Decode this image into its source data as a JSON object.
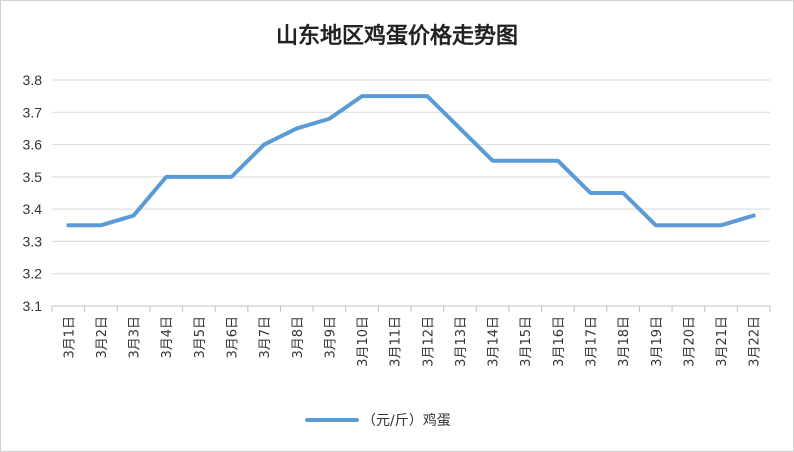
{
  "chart_data": {
    "type": "line",
    "title": "山东地区鸡蛋价格走势图",
    "xlabel": "",
    "ylabel": "",
    "ylim": [
      3.1,
      3.8
    ],
    "yticks": [
      "3.8",
      "3.7",
      "3.6",
      "3.5",
      "3.4",
      "3.3",
      "3.2",
      "3.1"
    ],
    "categories": [
      "3月1日",
      "3月2日",
      "3月3日",
      "3月4日",
      "3月5日",
      "3月6日",
      "3月7日",
      "3月8日",
      "3月9日",
      "3月10日",
      "3月11日",
      "3月12日",
      "3月13日",
      "3月14日",
      "3月15日",
      "3月16日",
      "3月17日",
      "3月18日",
      "3月19日",
      "3月20日",
      "3月21日",
      "3月22日"
    ],
    "series": [
      {
        "name": "（元/斤）鸡蛋",
        "color": "#5B9BD5",
        "values": [
          3.35,
          3.35,
          3.38,
          3.5,
          3.5,
          3.5,
          3.6,
          3.65,
          3.68,
          3.75,
          3.75,
          3.75,
          3.65,
          3.55,
          3.55,
          3.55,
          3.45,
          3.45,
          3.35,
          3.35,
          3.35,
          3.38
        ]
      }
    ],
    "grid": true,
    "legend_position": "bottom"
  }
}
